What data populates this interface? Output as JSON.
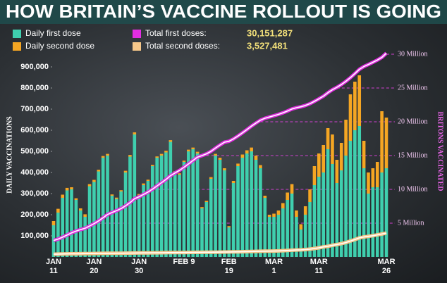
{
  "chart_data": {
    "type": "bar",
    "stacked": true,
    "title": "HOW BRITAIN’S VACCINE ROLLOUT IS GOING",
    "ylabel": "DAILY VACCINATIONS",
    "y2label": "BRITONS VACCINATED",
    "categories": [
      "JAN 11",
      null,
      null,
      null,
      null,
      null,
      null,
      null,
      null,
      "JAN 20",
      null,
      null,
      null,
      null,
      null,
      null,
      null,
      null,
      null,
      "JAN 30",
      null,
      null,
      null,
      null,
      null,
      null,
      null,
      null,
      null,
      "FEB 9",
      null,
      null,
      null,
      null,
      null,
      null,
      null,
      null,
      null,
      "FEB 19",
      null,
      null,
      null,
      null,
      null,
      null,
      null,
      null,
      null,
      "MAR 1",
      null,
      null,
      null,
      null,
      null,
      null,
      null,
      null,
      null,
      "MAR 11",
      null,
      null,
      null,
      null,
      null,
      null,
      null,
      null,
      null,
      null,
      null,
      null,
      null,
      null,
      "MAR 26"
    ],
    "series": [
      {
        "name": "Daily first dose",
        "color": "#3fcfae",
        "values": [
          150000,
          210000,
          280000,
          315000,
          320000,
          270000,
          220000,
          190000,
          335000,
          355000,
          405000,
          470000,
          480000,
          290000,
          275000,
          310000,
          400000,
          475000,
          580000,
          290000,
          340000,
          360000,
          430000,
          470000,
          480000,
          495000,
          545000,
          400000,
          390000,
          450000,
          500000,
          510000,
          490000,
          230000,
          260000,
          370000,
          480000,
          460000,
          410000,
          140000,
          350000,
          430000,
          470000,
          490000,
          500000,
          460000,
          420000,
          280000,
          190000,
          190000,
          200000,
          230000,
          270000,
          300000,
          190000,
          130000,
          200000,
          260000,
          340000,
          380000,
          400000,
          510000,
          440000,
          350000,
          410000,
          480000,
          550000,
          600000,
          620000,
          420000,
          300000,
          330000,
          330000,
          400000,
          420000
        ]
      },
      {
        "name": "Daily second dose",
        "color": "#f5a623",
        "values": [
          20000,
          18000,
          15000,
          12000,
          10000,
          8000,
          10000,
          12000,
          10000,
          10000,
          8000,
          8000,
          8000,
          6000,
          6000,
          6000,
          8000,
          8000,
          10000,
          8000,
          8000,
          6000,
          6000,
          6000,
          8000,
          8000,
          8000,
          6000,
          6000,
          6000,
          8000,
          8000,
          8000,
          6000,
          6000,
          8000,
          8000,
          10000,
          10000,
          6000,
          10000,
          12000,
          15000,
          15000,
          18000,
          20000,
          15000,
          10000,
          10000,
          15000,
          20000,
          25000,
          35000,
          45000,
          30000,
          25000,
          40000,
          60000,
          90000,
          110000,
          130000,
          100000,
          140000,
          110000,
          130000,
          170000,
          220000,
          230000,
          240000,
          130000,
          100000,
          90000,
          120000,
          290000,
          240000
        ]
      },
      {
        "name": "Total first doses:",
        "legend_value": "30,151,287",
        "type": "line",
        "axis": "y2",
        "color": "#e22ee2",
        "values": [
          2436000,
          2646000,
          2926000,
          3241000,
          3561000,
          3831000,
          4051000,
          4241000,
          4576000,
          4931000,
          5336000,
          5806000,
          6286000,
          6576000,
          6851000,
          7161000,
          7561000,
          8036000,
          8616000,
          8906000,
          9246000,
          9606000,
          10036000,
          10506000,
          10986000,
          11481000,
          12026000,
          12426000,
          12816000,
          13266000,
          13766000,
          14276000,
          14766000,
          14996000,
          15256000,
          15626000,
          16106000,
          16566000,
          16976000,
          17116000,
          17466000,
          17896000,
          18366000,
          18856000,
          19356000,
          19816000,
          20236000,
          20516000,
          20706000,
          20896000,
          21096000,
          21326000,
          21596000,
          21896000,
          22086000,
          22216000,
          22416000,
          22676000,
          23016000,
          23396000,
          23796000,
          24306000,
          24746000,
          25096000,
          25506000,
          25986000,
          26536000,
          27136000,
          27756000,
          28176000,
          28476000,
          28806000,
          29136000,
          29536000,
          30151287
        ]
      },
      {
        "name": "Total second doses:",
        "legend_value": "3,527,481",
        "type": "line",
        "axis": "y2",
        "color": "#f7c88a",
        "values": [
          410000,
          428000,
          443000,
          455000,
          465000,
          473000,
          483000,
          495000,
          505000,
          515000,
          523000,
          531000,
          539000,
          545000,
          551000,
          557000,
          565000,
          573000,
          583000,
          591000,
          599000,
          605000,
          611000,
          617000,
          625000,
          633000,
          641000,
          647000,
          653000,
          659000,
          667000,
          675000,
          683000,
          689000,
          695000,
          703000,
          711000,
          721000,
          731000,
          737000,
          747000,
          759000,
          774000,
          789000,
          807000,
          827000,
          842000,
          852000,
          862000,
          877000,
          897000,
          922000,
          957000,
          1002000,
          1032000,
          1057000,
          1097000,
          1157000,
          1247000,
          1357000,
          1487000,
          1587000,
          1727000,
          1837000,
          1967000,
          2137000,
          2357000,
          2587000,
          2827000,
          2957000,
          3057000,
          3147000,
          3267000,
          3400000,
          3527481
        ]
      }
    ],
    "ylim": [
      0,
      960000
    ],
    "yticks": [
      {
        "value": 100000,
        "label": "100,000"
      },
      {
        "value": 200000,
        "label": "200,000"
      },
      {
        "value": 300000,
        "label": "300,000"
      },
      {
        "value": 400000,
        "label": "400,000"
      },
      {
        "value": 500000,
        "label": "500,000"
      },
      {
        "value": 600000,
        "label": "600,000"
      },
      {
        "value": 700000,
        "label": "700,000"
      },
      {
        "value": 800000,
        "label": "800,000"
      },
      {
        "value": 900000,
        "label": "900,000"
      }
    ],
    "y2lim": [
      0,
      30000000
    ],
    "y2ticks": [
      {
        "value": 5000000,
        "label": "5 Million"
      },
      {
        "value": 10000000,
        "label": "10 Million"
      },
      {
        "value": 15000000,
        "label": "15 Million"
      },
      {
        "value": 20000000,
        "label": "20 Million"
      },
      {
        "value": 25000000,
        "label": "25 Million"
      },
      {
        "value": 30000000,
        "label": "30 Million"
      }
    ]
  }
}
